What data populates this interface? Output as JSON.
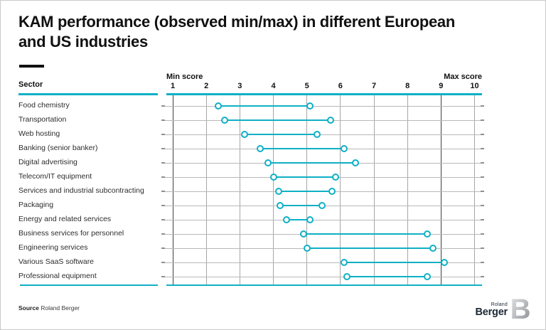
{
  "header": {
    "title_line1": "KAM performance (observed min/max) in different European",
    "title_line2": "and US industries"
  },
  "table": {
    "sector_header": "Sector"
  },
  "chart_data": {
    "type": "dumbbell_range",
    "title": "KAM performance (observed min/max) in different European and US industries",
    "xlabel": "Score",
    "x_axis": {
      "min_label": "Min score",
      "max_label": "Max score",
      "ticks": [
        1,
        2,
        3,
        4,
        5,
        6,
        7,
        8,
        9,
        10
      ],
      "range": [
        1,
        10
      ],
      "dark_gridlines": [
        1,
        9
      ],
      "grid": true
    },
    "categories": [
      "Food chemistry",
      "Transportation",
      "Web hosting",
      "Banking (senior banker)",
      "Digital advertising",
      "Telecom/IT equipment",
      "Services and industrial subcontracting",
      "Packaging",
      "Energy and related services",
      "Business services for personnel",
      "Engineering services",
      "Various SaaS software",
      "Professional equipment"
    ],
    "series": [
      {
        "name": "Min score",
        "values": [
          2.35,
          2.55,
          3.15,
          3.6,
          3.85,
          4.0,
          4.15,
          4.2,
          4.4,
          4.9,
          5.0,
          6.1,
          6.2
        ]
      },
      {
        "name": "Max score",
        "values": [
          5.1,
          5.7,
          5.3,
          6.1,
          6.45,
          5.85,
          5.75,
          5.45,
          5.1,
          8.6,
          8.75,
          9.1,
          8.6
        ]
      }
    ],
    "legend_position": "none"
  },
  "footer": {
    "source_label": "Source",
    "source_value": "Roland Berger",
    "logo": {
      "top": "Roland",
      "bottom": "Berger",
      "monogram": "B"
    }
  },
  "colors": {
    "accent": "#0eb0c5",
    "grid_light": "#a6a6a6",
    "grid_dark": "#3f3f3f",
    "row_line": "#b8b8b8",
    "row_line_end": "#8f8f8f",
    "title_text": "#111111",
    "label_text": "#2d2d2d",
    "logo_navy": "#1b2733",
    "monogram_light": "#dcdddf",
    "monogram_dark": "#888c90"
  }
}
